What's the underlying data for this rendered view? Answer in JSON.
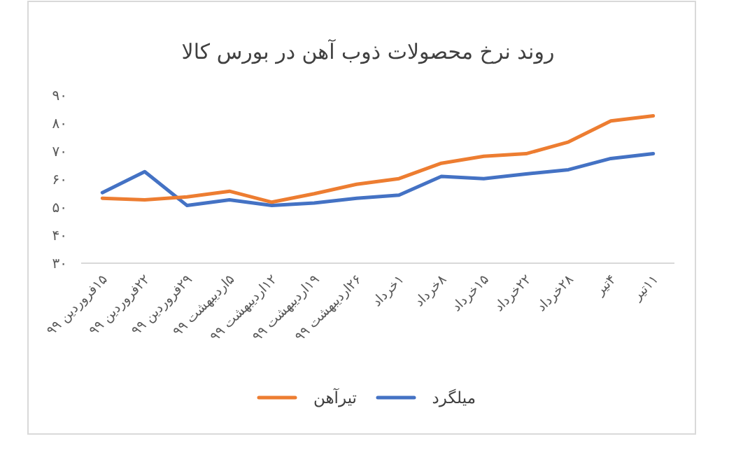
{
  "chart_data": {
    "type": "line",
    "title": "روند نرخ محصولات ذوب آهن در بورس کالا",
    "categories": [
      "۱۵فروردین ۹۹",
      "۲۲فروردین ۹۹",
      "۲۹فروردین ۹۹",
      "۵اردیبهشت ۹۹",
      "۱۲اردیبهشت ۹۹",
      "۱۹اردیبهشت ۹۹",
      "۲۶اردیبهشت ۹۹",
      "۱خرداد",
      "۸خرداد",
      "۱۵خرداد",
      "۲۲خرداد",
      "۲۸خرداد",
      "۴تیر",
      "۱۱تیر"
    ],
    "series": [
      {
        "name": "میلگرد",
        "color": "#4472c4",
        "values": [
          55.2,
          62.7,
          50.6,
          52.6,
          50.6,
          51.5,
          53.2,
          54.3,
          61.0,
          60.2,
          61.9,
          63.4,
          67.4,
          69.1
        ]
      },
      {
        "name": "تیرآهن",
        "color": "#ed7d31",
        "values": [
          53.2,
          52.6,
          53.7,
          55.7,
          51.8,
          54.8,
          58.2,
          60.2,
          65.7,
          68.2,
          69.1,
          73.3,
          80.8,
          82.6
        ]
      }
    ],
    "ylim": [
      30,
      90
    ],
    "yticks": [
      {
        "value": 30,
        "label": "۳۰"
      },
      {
        "value": 40,
        "label": "۴۰"
      },
      {
        "value": 50,
        "label": "۵۰"
      },
      {
        "value": 60,
        "label": "۶۰"
      },
      {
        "value": 70,
        "label": "۷۰"
      },
      {
        "value": 80,
        "label": "۸۰"
      },
      {
        "value": 90,
        "label": "۹۰"
      }
    ],
    "grid": false,
    "legend": "bottom",
    "line_style": "solid"
  }
}
